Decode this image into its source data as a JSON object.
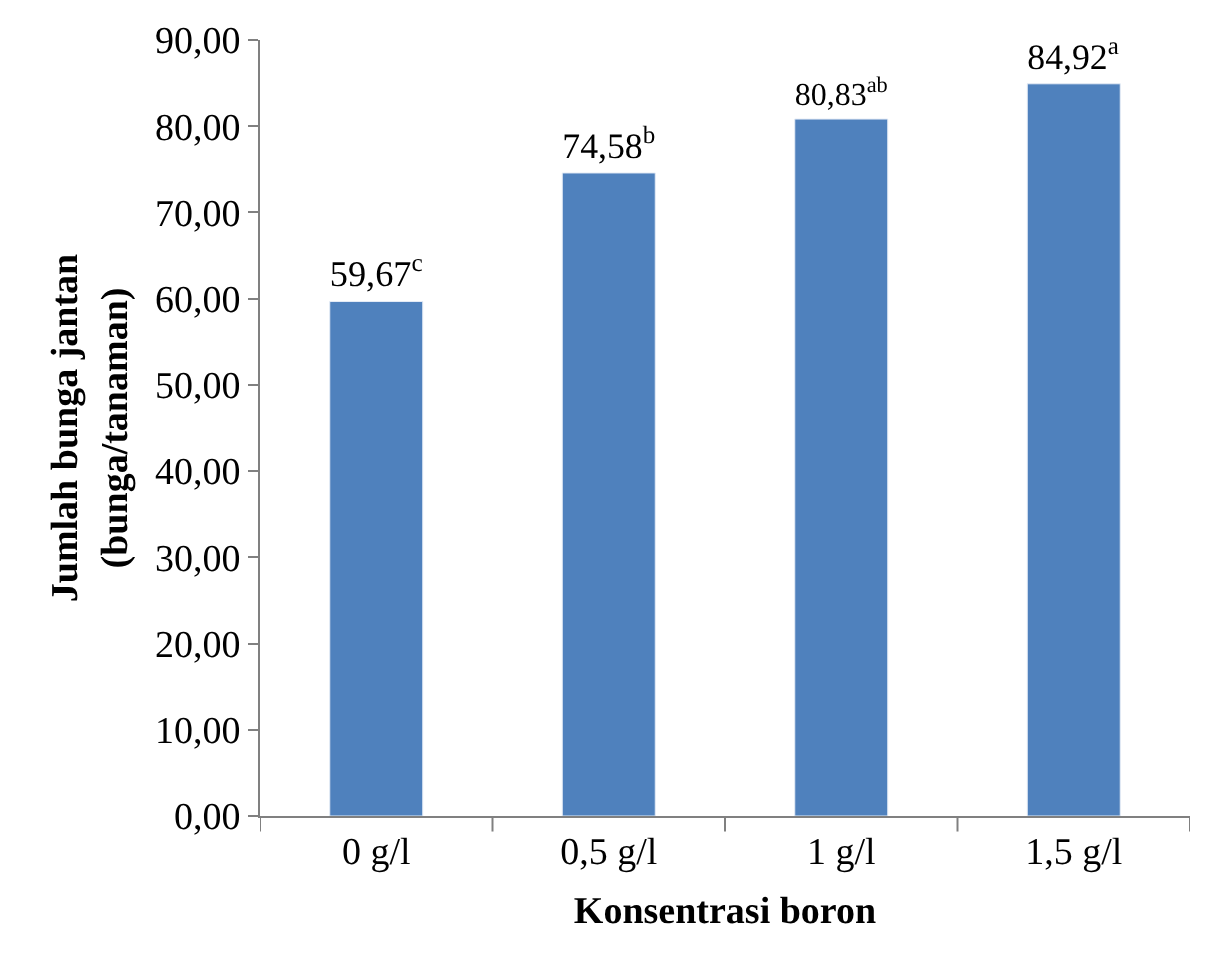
{
  "chart_data": {
    "type": "bar",
    "xlabel": "Konsentrasi boron",
    "ylabel": "Jumlah bunga jantan\n(bunga/tanaman)",
    "categories": [
      "0 g/l",
      "0,5 g/l",
      "1 g/l",
      "1,5 g/l"
    ],
    "values": [
      59.67,
      74.58,
      80.83,
      84.92
    ],
    "value_labels": [
      "59,67$^{c}$",
      "74,58$^{b}$",
      "80,83$^{ab}$",
      "84,92$^{a}$"
    ],
    "color": "#4f81bd",
    "ylim": [
      0,
      90
    ],
    "yticks": [
      {
        "value": 0,
        "label": "0,00"
      },
      {
        "value": 10,
        "label": "10,00"
      },
      {
        "value": 20,
        "label": "20,00"
      },
      {
        "value": 30,
        "label": "30,00"
      },
      {
        "value": 40,
        "label": "40,00"
      },
      {
        "value": 50,
        "label": "50,00"
      },
      {
        "value": 60,
        "label": "60,00"
      },
      {
        "value": 70,
        "label": "70,00"
      },
      {
        "value": 80,
        "label": "80,00"
      },
      {
        "value": 90,
        "label": "90,00"
      }
    ],
    "legend": false
  }
}
